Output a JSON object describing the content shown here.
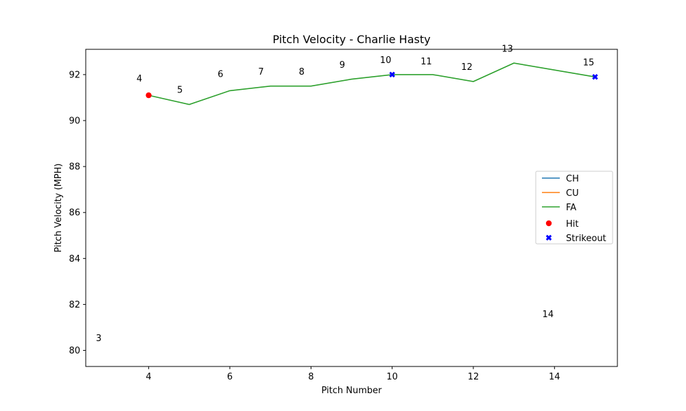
{
  "chart_data": {
    "type": "line",
    "title": "Pitch Velocity - Charlie Hasty",
    "xlabel": "Pitch Number",
    "ylabel": "Pitch Velocity (MPH)",
    "xlim": [
      2.45,
      15.55
    ],
    "ylim": [
      79.3,
      93.1
    ],
    "xticks": [
      "4",
      "6",
      "8",
      "10",
      "12",
      "14"
    ],
    "xtick_values": [
      4,
      6,
      8,
      10,
      12,
      14
    ],
    "yticks": [
      "80",
      "82",
      "84",
      "86",
      "88",
      "90",
      "92"
    ],
    "ytick_values": [
      80,
      82,
      84,
      86,
      88,
      90,
      92
    ],
    "grid": false,
    "legend_position": "center-right",
    "series": [
      {
        "name": "CH",
        "color": "#1f77b4",
        "x": [],
        "y": []
      },
      {
        "name": "CU",
        "color": "#ff7f0e",
        "x": [],
        "y": []
      },
      {
        "name": "FA",
        "color": "#2ca02c",
        "x": [
          4,
          5,
          6,
          7,
          8,
          9,
          10,
          11,
          12,
          13,
          15
        ],
        "y": [
          91.1,
          90.7,
          91.3,
          91.5,
          91.5,
          91.8,
          92.0,
          92.0,
          91.7,
          92.5,
          91.9
        ]
      }
    ],
    "hits": {
      "name": "Hit",
      "color": "#ff0000",
      "x": [
        4
      ],
      "y": [
        91.1
      ]
    },
    "strikeouts": {
      "name": "Strikeout",
      "color": "#0000ff",
      "x": [
        10,
        15
      ],
      "y": [
        92.0,
        91.9
      ]
    },
    "annotations": [
      {
        "text": "3",
        "x": 2.7,
        "y": 80.4
      },
      {
        "text": "4",
        "x": 3.7,
        "y": 91.7
      },
      {
        "text": "5",
        "x": 4.7,
        "y": 91.2
      },
      {
        "text": "6",
        "x": 5.7,
        "y": 91.9
      },
      {
        "text": "7",
        "x": 6.7,
        "y": 92.0
      },
      {
        "text": "8",
        "x": 7.7,
        "y": 92.0
      },
      {
        "text": "9",
        "x": 8.7,
        "y": 92.3
      },
      {
        "text": "10",
        "x": 9.7,
        "y": 92.5
      },
      {
        "text": "11",
        "x": 10.7,
        "y": 92.45
      },
      {
        "text": "12",
        "x": 11.7,
        "y": 92.2
      },
      {
        "text": "13",
        "x": 12.7,
        "y": 93.0
      },
      {
        "text": "14",
        "x": 13.7,
        "y": 81.45
      },
      {
        "text": "15",
        "x": 14.7,
        "y": 92.4
      }
    ]
  }
}
